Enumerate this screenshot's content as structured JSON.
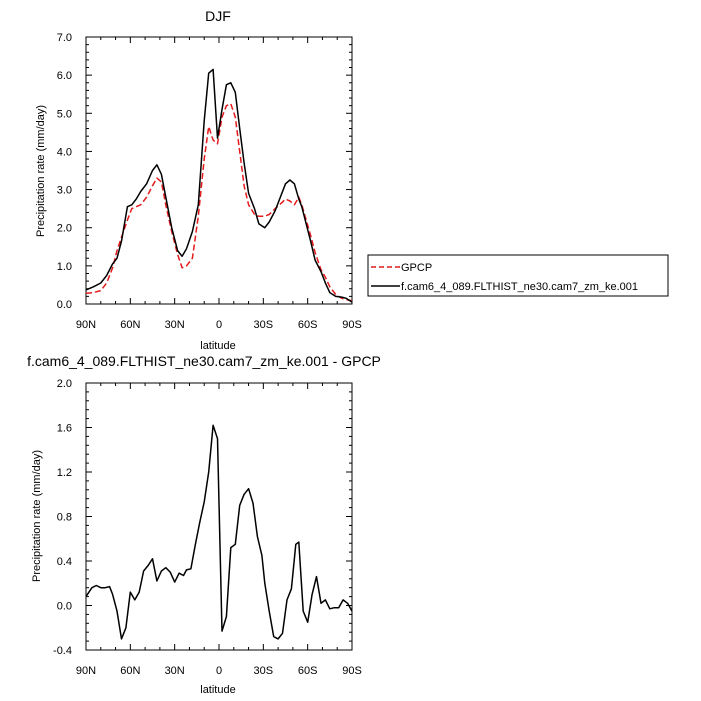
{
  "chart_data": [
    {
      "type": "line",
      "title": "DJF",
      "xlabel": "latitude",
      "ylabel": "Precipitation rate (mm/day)",
      "xlim": [
        90,
        -90
      ],
      "ylim": [
        0.0,
        7.0
      ],
      "xticks": [
        {
          "value": 90,
          "label": "90N"
        },
        {
          "value": 60,
          "label": "60N"
        },
        {
          "value": 30,
          "label": "30N"
        },
        {
          "value": 0,
          "label": "0"
        },
        {
          "value": -30,
          "label": "30S"
        },
        {
          "value": -60,
          "label": "60S"
        },
        {
          "value": -90,
          "label": "90S"
        }
      ],
      "yticks": [
        {
          "value": 0.0,
          "label": "0.0"
        },
        {
          "value": 1.0,
          "label": "1.0"
        },
        {
          "value": 2.0,
          "label": "2.0"
        },
        {
          "value": 3.0,
          "label": "3.0"
        },
        {
          "value": 4.0,
          "label": "4.0"
        },
        {
          "value": 5.0,
          "label": "5.0"
        },
        {
          "value": 6.0,
          "label": "6.0"
        },
        {
          "value": 7.0,
          "label": "7.0"
        }
      ],
      "legend_position": "right",
      "series": [
        {
          "name": "GPCP",
          "color": "#e41a1c",
          "dash": "dashed",
          "x": [
            90,
            85,
            80,
            76,
            72,
            69,
            66,
            62,
            59,
            56,
            53,
            49,
            45,
            42,
            39,
            36,
            32,
            28,
            25,
            22,
            18,
            14,
            10,
            7,
            4,
            1,
            -2,
            -5,
            -8,
            -11,
            -14,
            -17,
            -20,
            -24,
            -27,
            -31,
            -34,
            -38,
            -41,
            -45,
            -48,
            -51,
            -54,
            -56,
            -59,
            -62,
            -65,
            -69,
            -72,
            -75,
            -79,
            -83,
            -86,
            -90
          ],
          "y": [
            0.28,
            0.3,
            0.35,
            0.55,
            0.95,
            1.4,
            1.75,
            2.2,
            2.5,
            2.55,
            2.6,
            2.8,
            3.1,
            3.3,
            3.2,
            2.6,
            1.9,
            1.3,
            0.95,
            1.0,
            1.2,
            2.3,
            3.8,
            4.65,
            4.3,
            4.2,
            4.9,
            5.2,
            5.25,
            4.9,
            4.0,
            3.1,
            2.6,
            2.35,
            2.3,
            2.3,
            2.35,
            2.5,
            2.6,
            2.75,
            2.7,
            2.6,
            2.8,
            2.6,
            2.2,
            1.8,
            1.35,
            0.9,
            0.7,
            0.45,
            0.25,
            0.15,
            0.12,
            0.08
          ]
        },
        {
          "name": "f.cam6_4_089.FLTHIST_ne30.cam7_zm_ke.001",
          "color": "#000000",
          "dash": "solid",
          "x": [
            90,
            85,
            80,
            76,
            72,
            69,
            66,
            62,
            59,
            56,
            53,
            49,
            45,
            42,
            39,
            36,
            32,
            28,
            25,
            22,
            18,
            14,
            10,
            7,
            4,
            1,
            -2,
            -5,
            -8,
            -11,
            -14,
            -17,
            -20,
            -24,
            -27,
            -31,
            -34,
            -38,
            -41,
            -45,
            -48,
            -51,
            -54,
            -56,
            -59,
            -62,
            -65,
            -69,
            -72,
            -75,
            -79,
            -83,
            -86,
            -90
          ],
          "y": [
            0.37,
            0.45,
            0.55,
            0.75,
            1.05,
            1.2,
            1.65,
            2.55,
            2.6,
            2.75,
            2.95,
            3.15,
            3.5,
            3.65,
            3.4,
            2.8,
            2.0,
            1.4,
            1.25,
            1.45,
            1.9,
            2.6,
            4.8,
            6.05,
            6.15,
            4.35,
            5.1,
            5.75,
            5.8,
            5.55,
            4.6,
            3.7,
            2.9,
            2.5,
            2.1,
            2.0,
            2.15,
            2.45,
            2.75,
            3.15,
            3.25,
            3.15,
            2.75,
            2.55,
            2.1,
            1.65,
            1.15,
            0.85,
            0.55,
            0.3,
            0.2,
            0.18,
            0.15,
            0.05
          ]
        }
      ]
    },
    {
      "type": "line",
      "title": "f.cam6_4_089.FLTHIST_ne30.cam7_zm_ke.001 - GPCP",
      "xlabel": "latitude",
      "ylabel": "Precipitation rate (mm/day)",
      "xlim": [
        90,
        -90
      ],
      "ylim": [
        -0.4,
        2.0
      ],
      "xticks": [
        {
          "value": 90,
          "label": "90N"
        },
        {
          "value": 60,
          "label": "60N"
        },
        {
          "value": 30,
          "label": "30N"
        },
        {
          "value": 0,
          "label": "0"
        },
        {
          "value": -30,
          "label": "30S"
        },
        {
          "value": -60,
          "label": "60S"
        },
        {
          "value": -90,
          "label": "90S"
        }
      ],
      "yticks": [
        {
          "value": -0.4,
          "label": "-0.4"
        },
        {
          "value": 0.0,
          "label": "0.0"
        },
        {
          "value": 0.4,
          "label": "0.4"
        },
        {
          "value": 0.8,
          "label": "0.8"
        },
        {
          "value": 1.2,
          "label": "1.2"
        },
        {
          "value": 1.6,
          "label": "1.6"
        },
        {
          "value": 2.0,
          "label": "2.0"
        }
      ],
      "series": [
        {
          "color": "#000000",
          "dash": "solid",
          "x": [
            90,
            86,
            83,
            80,
            77,
            74,
            72,
            69,
            66,
            63,
            60,
            57,
            54,
            51,
            48,
            45,
            42,
            39,
            36,
            33,
            30,
            27,
            24,
            22,
            19,
            16,
            13,
            10,
            7,
            4,
            1,
            -2,
            -5,
            -8,
            -11,
            -14,
            -17,
            -20,
            -23,
            -26,
            -29,
            -31,
            -34,
            -37,
            -40,
            -43,
            -46,
            -49,
            -52,
            -54,
            -57,
            -60,
            -63,
            -66,
            -69,
            -72,
            -75,
            -78,
            -81,
            -84,
            -87,
            -90
          ],
          "y": [
            0.08,
            0.16,
            0.18,
            0.16,
            0.16,
            0.17,
            0.1,
            -0.05,
            -0.3,
            -0.2,
            0.12,
            0.05,
            0.12,
            0.31,
            0.36,
            0.42,
            0.22,
            0.31,
            0.34,
            0.3,
            0.21,
            0.29,
            0.27,
            0.32,
            0.33,
            0.55,
            0.75,
            0.93,
            1.2,
            1.62,
            1.5,
            -0.23,
            -0.1,
            0.52,
            0.55,
            0.9,
            1.0,
            1.05,
            0.92,
            0.62,
            0.45,
            0.2,
            -0.05,
            -0.28,
            -0.3,
            -0.25,
            0.05,
            0.15,
            0.55,
            0.57,
            -0.05,
            -0.15,
            0.1,
            0.26,
            0.02,
            0.05,
            -0.03,
            -0.02,
            -0.02,
            0.05,
            0.02,
            -0.05
          ]
        }
      ]
    }
  ]
}
